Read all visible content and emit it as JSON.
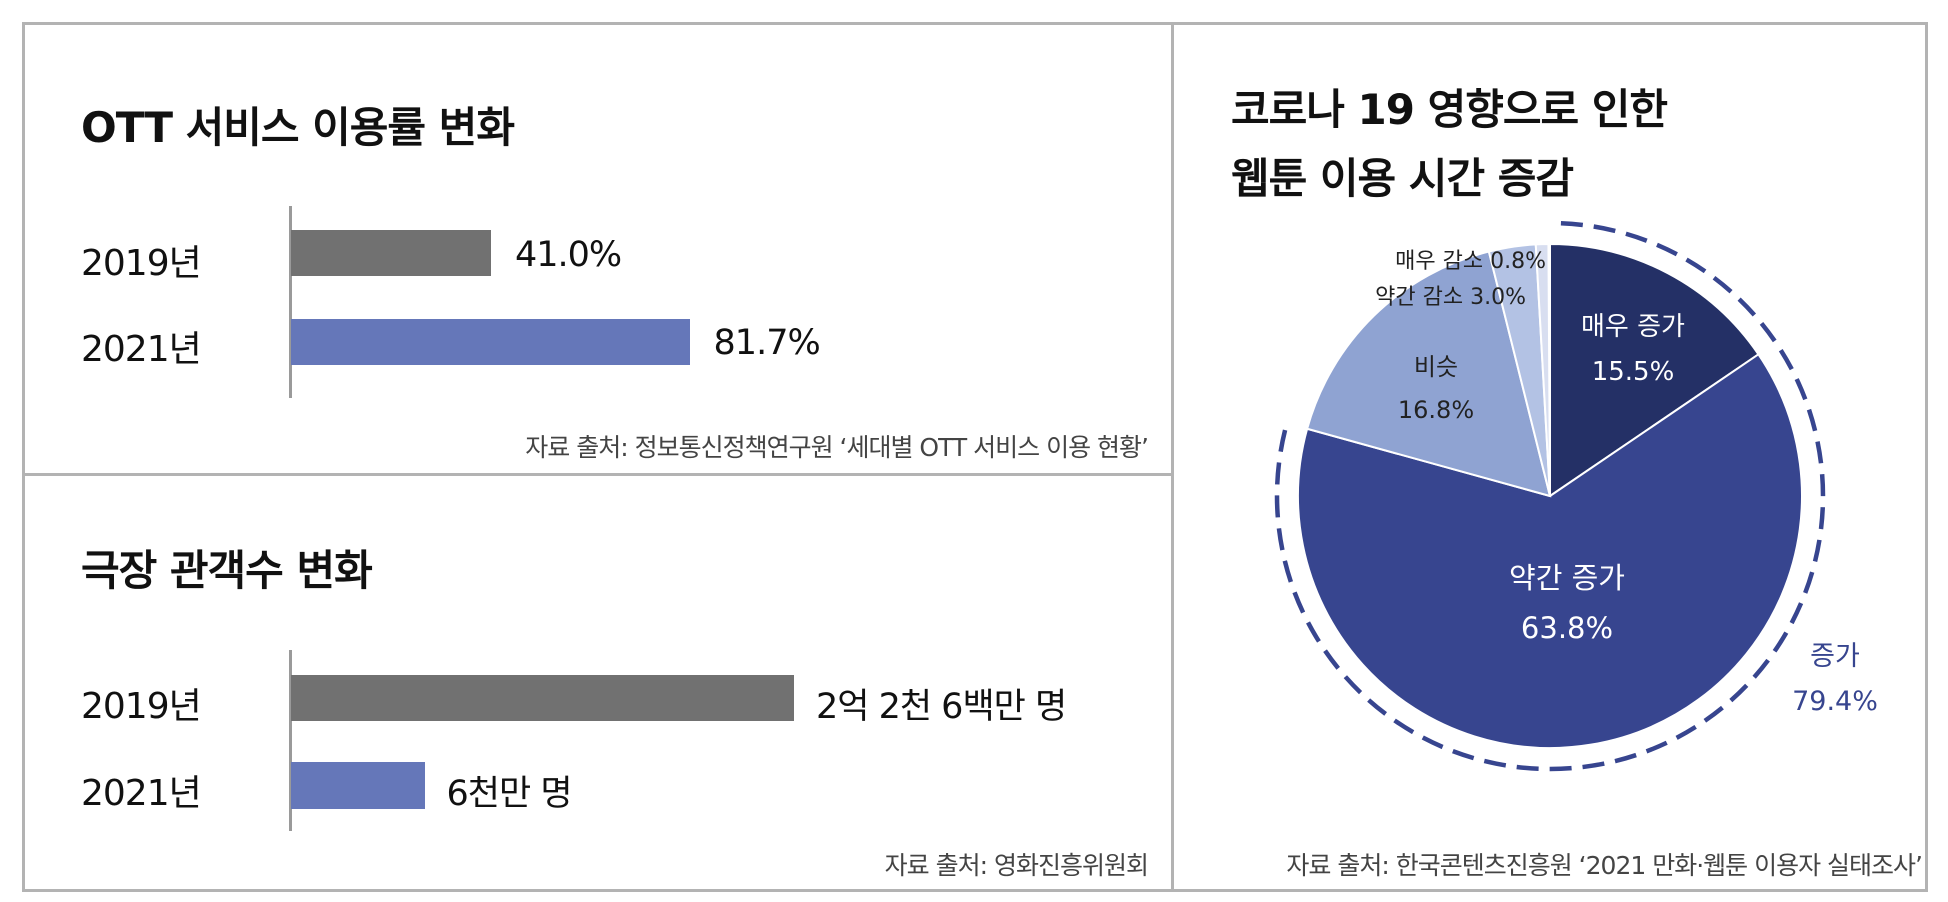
{
  "colors": {
    "bar_2019": "#717171",
    "bar_2021": "#6577b9",
    "border": "#b3b3b3",
    "pie": [
      "#243066",
      "#37458f",
      "#8fa3d2",
      "#b3c2e4",
      "#d8def0"
    ],
    "increase_label": "#37458f"
  },
  "chart_data": [
    {
      "type": "bar",
      "orientation": "horizontal",
      "title": "OTT 서비스 이용률 변화",
      "categories": [
        "2019년",
        "2021년"
      ],
      "values": [
        41.0,
        81.7
      ],
      "value_labels": [
        "41.0%",
        "81.7%"
      ],
      "unit": "%",
      "xlim": [
        0,
        100
      ],
      "source": "자료 출처: 정보통신정책연구원 ‘세대별 OTT 서비스 이용 현황’"
    },
    {
      "type": "bar",
      "orientation": "horizontal",
      "title": "극장 관객수 변화",
      "categories": [
        "2019년",
        "2021년"
      ],
      "values": [
        226000000,
        60000000
      ],
      "value_labels": [
        "2억 2천 6백만 명",
        "6천만 명"
      ],
      "source": "자료 출처: 영화진흥위원회"
    },
    {
      "type": "pie",
      "title_lines": [
        "코로나 19 영향으로 인한",
        "웹툰 이용 시간 증감"
      ],
      "slices": [
        {
          "label": "매우 증가",
          "value": 15.5,
          "text": "15.5%"
        },
        {
          "label": "약간 증가",
          "value": 63.8,
          "text": "63.8%"
        },
        {
          "label": "비슷",
          "value": 16.8,
          "text": "16.8%"
        },
        {
          "label": "약간 감소",
          "value": 3.0,
          "text": "3.0%"
        },
        {
          "label": "매우 감소",
          "value": 0.8,
          "text": "0.8%"
        }
      ],
      "group_annotation": {
        "label": "증가",
        "text": "79.4%",
        "value": 79.4
      },
      "source": "자료 출처: 한국콘텐츠진흥원 ‘2021 만화·웹툰 이용자 실태조사’"
    }
  ]
}
